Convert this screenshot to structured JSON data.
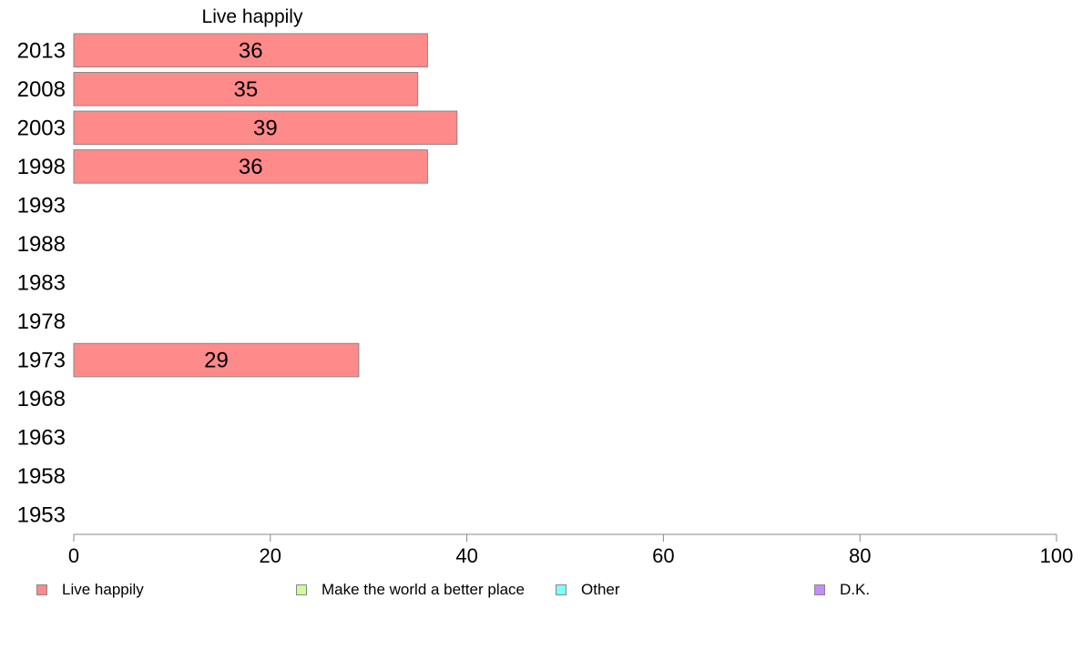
{
  "chart_data": {
    "type": "bar",
    "orientation": "horizontal",
    "series_title": "Live happily",
    "categories": [
      "2013",
      "2008",
      "2003",
      "1998",
      "1993",
      "1988",
      "1983",
      "1978",
      "1973",
      "1968",
      "1963",
      "1958",
      "1953"
    ],
    "series": [
      {
        "name": "Live happily",
        "values": [
          36,
          35,
          39,
          36,
          null,
          null,
          null,
          null,
          29,
          null,
          null,
          null,
          null
        ]
      }
    ],
    "data_labels": [
      "36",
      "35",
      "39",
      "36",
      "",
      "",
      "",
      "",
      "29",
      "",
      "",
      "",
      ""
    ],
    "xlim": [
      0,
      100
    ],
    "xticks": [
      0,
      20,
      40,
      60,
      80,
      100
    ],
    "grid": false,
    "legend_position": "bottom",
    "legend": [
      {
        "label": "Live happily",
        "color": "#ff8a8a"
      },
      {
        "label": "Make the world a better place",
        "color": "#ccff99"
      },
      {
        "label": "Other",
        "color": "#80ffff"
      },
      {
        "label": "D.K.",
        "color": "#c48cff"
      }
    ],
    "bar_color": "#ff8a8a",
    "bar_stroke": "#888888",
    "axis_color": "#888888"
  }
}
